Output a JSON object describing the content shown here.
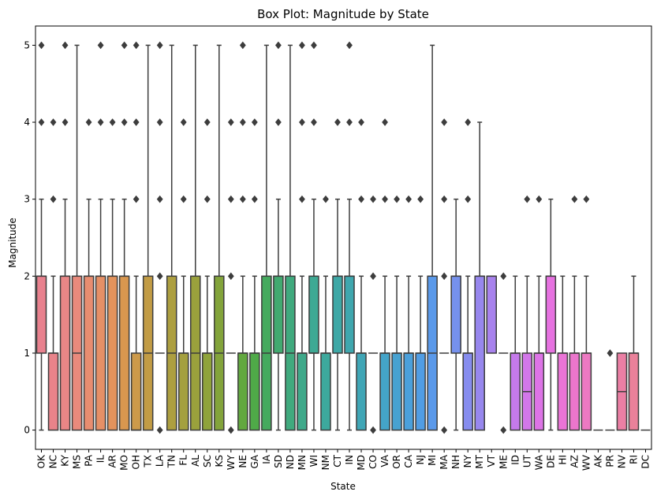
{
  "chart_data": {
    "type": "box",
    "title": "Box Plot: Magnitude by State",
    "xlabel": "State",
    "ylabel": "Magnitude",
    "ylim": [
      -0.25,
      5.25
    ],
    "yticks": [
      0,
      1,
      2,
      3,
      4,
      5
    ],
    "grid": false,
    "legend": "none",
    "boxes": [
      {
        "category": "OK",
        "q1": 1,
        "median": 2,
        "q3": 2,
        "whisker_low": 0,
        "whisker_high": 3,
        "outliers": [
          4,
          5
        ],
        "color": "#e8818e"
      },
      {
        "category": "NC",
        "q1": 0,
        "median": 1,
        "q3": 1,
        "whisker_low": 0,
        "whisker_high": 2,
        "outliers": [
          3,
          4
        ],
        "color": "#e9838a"
      },
      {
        "category": "KY",
        "q1": 0,
        "median": 2,
        "q3": 2,
        "whisker_low": 0,
        "whisker_high": 3,
        "outliers": [
          4,
          5
        ],
        "color": "#e98686"
      },
      {
        "category": "MS",
        "q1": 0,
        "median": 1,
        "q3": 2,
        "whisker_low": 0,
        "whisker_high": 5,
        "outliers": [],
        "color": "#e98a7c"
      },
      {
        "category": "PA",
        "q1": 0,
        "median": 2,
        "q3": 2,
        "whisker_low": 0,
        "whisker_high": 3,
        "outliers": [
          4
        ],
        "color": "#e88d70"
      },
      {
        "category": "IL",
        "q1": 0,
        "median": 2,
        "q3": 2,
        "whisker_low": 0,
        "whisker_high": 3,
        "outliers": [
          4,
          5
        ],
        "color": "#e69066"
      },
      {
        "category": "AR",
        "q1": 0,
        "median": 2,
        "q3": 2,
        "whisker_low": 0,
        "whisker_high": 3,
        "outliers": [
          4
        ],
        "color": "#e3935c"
      },
      {
        "category": "MO",
        "q1": 0,
        "median": 2,
        "q3": 2,
        "whisker_low": 0,
        "whisker_high": 3,
        "outliers": [
          4,
          5
        ],
        "color": "#d9974f"
      },
      {
        "category": "OH",
        "q1": 0,
        "median": 0,
        "q3": 1,
        "whisker_low": 0,
        "whisker_high": 2,
        "outliers": [
          3,
          4,
          5
        ],
        "color": "#cd9a4a"
      },
      {
        "category": "TX",
        "q1": 0,
        "median": 1,
        "q3": 2,
        "whisker_low": 0,
        "whisker_high": 5,
        "outliers": [],
        "color": "#c29c45"
      },
      {
        "category": "LA",
        "q1": 1,
        "median": 1,
        "q3": 1,
        "whisker_low": 1,
        "whisker_high": 1,
        "outliers": [
          0,
          2,
          3,
          4,
          5
        ],
        "color": "#b79e42"
      },
      {
        "category": "TN",
        "q1": 0,
        "median": 1,
        "q3": 2,
        "whisker_low": 0,
        "whisker_high": 5,
        "outliers": [],
        "color": "#ad9f40"
      },
      {
        "category": "FL",
        "q1": 0,
        "median": 1,
        "q3": 1,
        "whisker_low": 0,
        "whisker_high": 2,
        "outliers": [
          3,
          4
        ],
        "color": "#a4a03e"
      },
      {
        "category": "AL",
        "q1": 0,
        "median": 1,
        "q3": 2,
        "whisker_low": 0,
        "whisker_high": 5,
        "outliers": [],
        "color": "#9aa13c"
      },
      {
        "category": "SC",
        "q1": 0,
        "median": 1,
        "q3": 1,
        "whisker_low": 0,
        "whisker_high": 2,
        "outliers": [
          3,
          4
        ],
        "color": "#8fa33b"
      },
      {
        "category": "KS",
        "q1": 0,
        "median": 1,
        "q3": 2,
        "whisker_low": 0,
        "whisker_high": 5,
        "outliers": [],
        "color": "#83a43b"
      },
      {
        "category": "WY",
        "q1": 1,
        "median": 1,
        "q3": 1,
        "whisker_low": 1,
        "whisker_high": 1,
        "outliers": [
          0,
          2,
          3,
          4
        ],
        "color": "#74a63c"
      },
      {
        "category": "NE",
        "q1": 0,
        "median": 1,
        "q3": 1,
        "whisker_low": 0,
        "whisker_high": 2,
        "outliers": [
          3,
          4,
          5
        ],
        "color": "#62a83f"
      },
      {
        "category": "GA",
        "q1": 0,
        "median": 1,
        "q3": 1,
        "whisker_low": 0,
        "whisker_high": 2,
        "outliers": [
          3,
          4
        ],
        "color": "#4faa48"
      },
      {
        "category": "IA",
        "q1": 0,
        "median": 1,
        "q3": 2,
        "whisker_low": 0,
        "whisker_high": 5,
        "outliers": [],
        "color": "#45aa5e"
      },
      {
        "category": "SD",
        "q1": 1,
        "median": 2,
        "q3": 2,
        "whisker_low": 0,
        "whisker_high": 3,
        "outliers": [
          4,
          5
        ],
        "color": "#42aa70"
      },
      {
        "category": "ND",
        "q1": 0,
        "median": 1,
        "q3": 2,
        "whisker_low": 0,
        "whisker_high": 5,
        "outliers": [],
        "color": "#40aa7e"
      },
      {
        "category": "MN",
        "q1": 0,
        "median": 1,
        "q3": 1,
        "whisker_low": 0,
        "whisker_high": 2,
        "outliers": [
          3,
          4,
          5
        ],
        "color": "#3fa98a"
      },
      {
        "category": "WI",
        "q1": 1,
        "median": 1,
        "q3": 2,
        "whisker_low": 0,
        "whisker_high": 3,
        "outliers": [
          4,
          5
        ],
        "color": "#3ea994"
      },
      {
        "category": "NM",
        "q1": 0,
        "median": 1,
        "q3": 1,
        "whisker_low": 0,
        "whisker_high": 2,
        "outliers": [
          3
        ],
        "color": "#3da99d"
      },
      {
        "category": "CT",
        "q1": 1,
        "median": 2,
        "q3": 2,
        "whisker_low": 0,
        "whisker_high": 3,
        "outliers": [
          4
        ],
        "color": "#3ea8a6"
      },
      {
        "category": "IN",
        "q1": 1,
        "median": 2,
        "q3": 2,
        "whisker_low": 0,
        "whisker_high": 3,
        "outliers": [
          4,
          5
        ],
        "color": "#3fa7ae"
      },
      {
        "category": "MD",
        "q1": 0,
        "median": 1,
        "q3": 1,
        "whisker_low": 0,
        "whisker_high": 2,
        "outliers": [
          3,
          4
        ],
        "color": "#40a6b6"
      },
      {
        "category": "CO",
        "q1": 1,
        "median": 1,
        "q3": 1,
        "whisker_low": 1,
        "whisker_high": 1,
        "outliers": [
          0,
          2,
          3
        ],
        "color": "#42a5bf"
      },
      {
        "category": "VA",
        "q1": 0,
        "median": 1,
        "q3": 1,
        "whisker_low": 0,
        "whisker_high": 2,
        "outliers": [
          3,
          4
        ],
        "color": "#44a4c8"
      },
      {
        "category": "OR",
        "q1": 0,
        "median": 1,
        "q3": 1,
        "whisker_low": 0,
        "whisker_high": 2,
        "outliers": [
          3
        ],
        "color": "#47a2d1"
      },
      {
        "category": "CA",
        "q1": 0,
        "median": 1,
        "q3": 1,
        "whisker_low": 0,
        "whisker_high": 2,
        "outliers": [
          3
        ],
        "color": "#4ba0db"
      },
      {
        "category": "NJ",
        "q1": 0,
        "median": 1,
        "q3": 1,
        "whisker_low": 0,
        "whisker_high": 2,
        "outliers": [
          3
        ],
        "color": "#519de4"
      },
      {
        "category": "MI",
        "q1": 0,
        "median": 1,
        "q3": 2,
        "whisker_low": 0,
        "whisker_high": 5,
        "outliers": [],
        "color": "#5a99ea"
      },
      {
        "category": "MA",
        "q1": 1,
        "median": 1,
        "q3": 1,
        "whisker_low": 1,
        "whisker_high": 1,
        "outliers": [
          0,
          2,
          3,
          4
        ],
        "color": "#6795ec"
      },
      {
        "category": "NH",
        "q1": 1,
        "median": 2,
        "q3": 2,
        "whisker_low": 0,
        "whisker_high": 3,
        "outliers": [],
        "color": "#7691ed"
      },
      {
        "category": "NY",
        "q1": 0,
        "median": 1,
        "q3": 1,
        "whisker_low": 0,
        "whisker_high": 2,
        "outliers": [
          3,
          4
        ],
        "color": "#868cee"
      },
      {
        "category": "MT",
        "q1": 0,
        "median": 2,
        "q3": 2,
        "whisker_low": 0,
        "whisker_high": 4,
        "outliers": [],
        "color": "#9787ee"
      },
      {
        "category": "VT",
        "q1": 1,
        "median": 2,
        "q3": 2,
        "whisker_low": 1,
        "whisker_high": 2,
        "outliers": [],
        "color": "#a882ed"
      },
      {
        "category": "ME",
        "q1": 1,
        "median": 1,
        "q3": 1,
        "whisker_low": 1,
        "whisker_high": 1,
        "outliers": [
          0,
          2
        ],
        "color": "#b77ded"
      },
      {
        "category": "ID",
        "q1": 0,
        "median": 1,
        "q3": 1,
        "whisker_low": 0,
        "whisker_high": 2,
        "outliers": [],
        "color": "#c57aeb"
      },
      {
        "category": "UT",
        "q1": 0,
        "median": 0.5,
        "q3": 1,
        "whisker_low": 0,
        "whisker_high": 2,
        "outliers": [
          3
        ],
        "color": "#d277e9"
      },
      {
        "category": "WA",
        "q1": 0,
        "median": 1,
        "q3": 1,
        "whisker_low": 0,
        "whisker_high": 2,
        "outliers": [
          3
        ],
        "color": "#dd74e6"
      },
      {
        "category": "DE",
        "q1": 1,
        "median": 2,
        "q3": 2,
        "whisker_low": 0,
        "whisker_high": 3,
        "outliers": [],
        "color": "#e672e0"
      },
      {
        "category": "HI",
        "q1": 0,
        "median": 1,
        "q3": 1,
        "whisker_low": 0,
        "whisker_high": 2,
        "outliers": [],
        "color": "#ea74d6"
      },
      {
        "category": "AZ",
        "q1": 0,
        "median": 1,
        "q3": 1,
        "whisker_low": 0,
        "whisker_high": 2,
        "outliers": [
          3
        ],
        "color": "#eb76cc"
      },
      {
        "category": "WV",
        "q1": 0,
        "median": 1,
        "q3": 1,
        "whisker_low": 0,
        "whisker_high": 2,
        "outliers": [
          3
        ],
        "color": "#ec79c2"
      },
      {
        "category": "AK",
        "q1": 0,
        "median": 0,
        "q3": 0,
        "whisker_low": 0,
        "whisker_high": 0,
        "outliers": [],
        "color": "#ec7bb8"
      },
      {
        "category": "PR",
        "q1": 0,
        "median": 0,
        "q3": 0,
        "whisker_low": 0,
        "whisker_high": 0,
        "outliers": [
          1
        ],
        "color": "#ec7dae"
      },
      {
        "category": "NV",
        "q1": 0,
        "median": 0.5,
        "q3": 1,
        "whisker_low": 0,
        "whisker_high": 1,
        "outliers": [],
        "color": "#eb7fa4"
      },
      {
        "category": "RI",
        "q1": 0,
        "median": 1,
        "q3": 1,
        "whisker_low": 0,
        "whisker_high": 2,
        "outliers": [],
        "color": "#ea819a"
      },
      {
        "category": "DC",
        "q1": 0,
        "median": 0,
        "q3": 0,
        "whisker_low": 0,
        "whisker_high": 0,
        "outliers": [],
        "color": "#e98393"
      }
    ]
  }
}
